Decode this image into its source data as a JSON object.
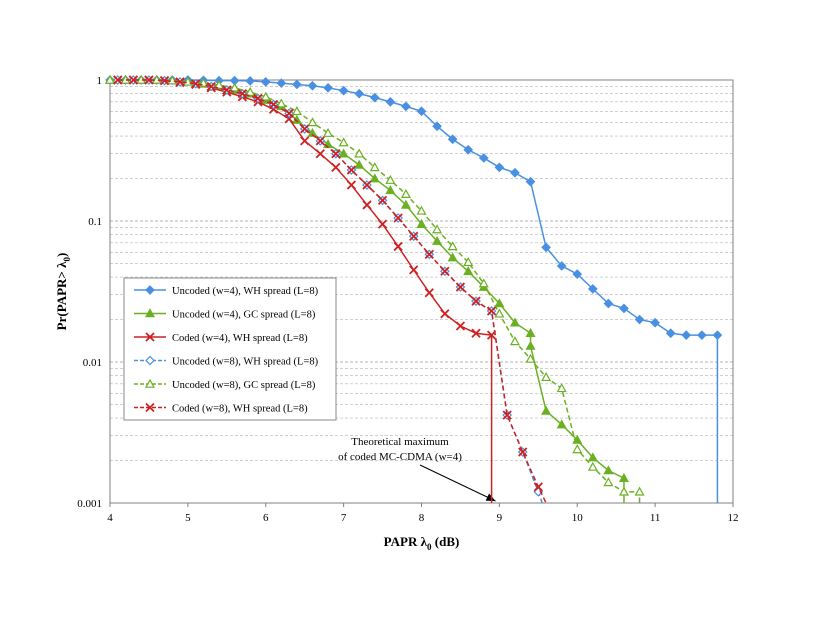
{
  "chart_data": {
    "type": "line",
    "title": "",
    "xlabel": "PAPR λ",
    "xlabel_sub": "0",
    "xlabel_unit": " (dB)",
    "ylabel": "Pr(PAPR> λ",
    "ylabel_sub": "0",
    "ylabel_end": ")",
    "xlim": [
      4,
      12
    ],
    "ylim": [
      0.001,
      1
    ],
    "yscale": "log",
    "x_ticks": [
      "4",
      "5",
      "6",
      "7",
      "8",
      "9",
      "10",
      "11",
      "12"
    ],
    "y_ticks": [
      "0.001",
      "0.01",
      "0.1",
      "1"
    ],
    "grid": true,
    "legend_position": "left-center",
    "annotation": {
      "lines": [
        "Theoretical maximum",
        "of coded MC-CDMA (w=4)"
      ],
      "points_to": {
        "x": 8.95,
        "y": 0.001
      }
    },
    "series": [
      {
        "name": "Uncoded  (w=4), WH spread (L=8)",
        "color": "#4a90e2",
        "marker": "diamond",
        "filled": true,
        "dashed": false,
        "points": [
          [
            4.0,
            1
          ],
          [
            4.2,
            1
          ],
          [
            4.4,
            1
          ],
          [
            4.6,
            1
          ],
          [
            4.8,
            1
          ],
          [
            5.0,
            1
          ],
          [
            5.2,
            0.995
          ],
          [
            5.4,
            0.99
          ],
          [
            5.6,
            0.99
          ],
          [
            5.8,
            0.985
          ],
          [
            6.0,
            0.97
          ],
          [
            6.2,
            0.95
          ],
          [
            6.4,
            0.93
          ],
          [
            6.6,
            0.91
          ],
          [
            6.8,
            0.88
          ],
          [
            7.0,
            0.84
          ],
          [
            7.2,
            0.8
          ],
          [
            7.4,
            0.75
          ],
          [
            7.6,
            0.7
          ],
          [
            7.8,
            0.65
          ],
          [
            8.0,
            0.6
          ],
          [
            8.2,
            0.47
          ],
          [
            8.4,
            0.38
          ],
          [
            8.6,
            0.32
          ],
          [
            8.8,
            0.28
          ],
          [
            9.0,
            0.24
          ],
          [
            9.2,
            0.22
          ],
          [
            9.4,
            0.19
          ],
          [
            9.6,
            0.065
          ],
          [
            9.8,
            0.048
          ],
          [
            10.0,
            0.042
          ],
          [
            10.2,
            0.033
          ],
          [
            10.4,
            0.026
          ],
          [
            10.6,
            0.024
          ],
          [
            10.8,
            0.02
          ],
          [
            11.0,
            0.019
          ],
          [
            11.2,
            0.016
          ],
          [
            11.4,
            0.0155
          ],
          [
            11.6,
            0.0155
          ],
          [
            11.8,
            0.0155
          ],
          [
            11.8,
            0.001
          ]
        ]
      },
      {
        "name": "Uncoded  (w=4), GC spread (L=8)",
        "color": "#6ab023",
        "marker": "triangle",
        "filled": true,
        "dashed": false,
        "points": [
          [
            4.0,
            1
          ],
          [
            4.2,
            1
          ],
          [
            4.4,
            1
          ],
          [
            4.6,
            1
          ],
          [
            4.8,
            0.99
          ],
          [
            5.0,
            0.97
          ],
          [
            5.2,
            0.94
          ],
          [
            5.4,
            0.9
          ],
          [
            5.6,
            0.85
          ],
          [
            5.8,
            0.8
          ],
          [
            6.0,
            0.72
          ],
          [
            6.2,
            0.65
          ],
          [
            6.4,
            0.52
          ],
          [
            6.6,
            0.42
          ],
          [
            6.8,
            0.35
          ],
          [
            7.0,
            0.3
          ],
          [
            7.2,
            0.25
          ],
          [
            7.4,
            0.2
          ],
          [
            7.6,
            0.165
          ],
          [
            7.8,
            0.13
          ],
          [
            8.0,
            0.095
          ],
          [
            8.2,
            0.072
          ],
          [
            8.4,
            0.055
          ],
          [
            8.6,
            0.044
          ],
          [
            8.8,
            0.034
          ],
          [
            9.0,
            0.026
          ],
          [
            9.2,
            0.019
          ],
          [
            9.4,
            0.016
          ],
          [
            9.4,
            0.013
          ],
          [
            9.6,
            0.0045
          ],
          [
            9.8,
            0.0036
          ],
          [
            10.0,
            0.0028
          ],
          [
            10.2,
            0.0021
          ],
          [
            10.4,
            0.0017
          ],
          [
            10.6,
            0.0015
          ],
          [
            10.6,
            0.001
          ]
        ]
      },
      {
        "name": "Coded  (w=4), WH spread (L=8)",
        "color": "#cc2222",
        "marker": "x",
        "filled": true,
        "dashed": false,
        "points": [
          [
            4.1,
            1
          ],
          [
            4.3,
            1
          ],
          [
            4.5,
            1
          ],
          [
            4.7,
            0.99
          ],
          [
            4.9,
            0.96
          ],
          [
            5.1,
            0.93
          ],
          [
            5.3,
            0.88
          ],
          [
            5.5,
            0.82
          ],
          [
            5.7,
            0.76
          ],
          [
            5.9,
            0.7
          ],
          [
            6.1,
            0.62
          ],
          [
            6.3,
            0.53
          ],
          [
            6.5,
            0.37
          ],
          [
            6.7,
            0.3
          ],
          [
            6.9,
            0.24
          ],
          [
            7.1,
            0.18
          ],
          [
            7.3,
            0.13
          ],
          [
            7.5,
            0.095
          ],
          [
            7.7,
            0.066
          ],
          [
            7.9,
            0.045
          ],
          [
            8.1,
            0.031
          ],
          [
            8.3,
            0.022
          ],
          [
            8.5,
            0.018
          ],
          [
            8.7,
            0.016
          ],
          [
            8.9,
            0.0155
          ],
          [
            8.9,
            0.001
          ]
        ]
      },
      {
        "name": "Uncoded  (w=8), WH spread (L=8)",
        "color": "#4a90e2",
        "marker": "diamond",
        "filled": false,
        "dashed": true,
        "points": [
          [
            4.1,
            1
          ],
          [
            4.3,
            1
          ],
          [
            4.5,
            1
          ],
          [
            4.7,
            0.99
          ],
          [
            4.9,
            0.97
          ],
          [
            5.1,
            0.94
          ],
          [
            5.3,
            0.9
          ],
          [
            5.5,
            0.85
          ],
          [
            5.7,
            0.8
          ],
          [
            5.9,
            0.74
          ],
          [
            6.1,
            0.67
          ],
          [
            6.3,
            0.58
          ],
          [
            6.5,
            0.45
          ],
          [
            6.7,
            0.37
          ],
          [
            6.9,
            0.3
          ],
          [
            7.1,
            0.23
          ],
          [
            7.3,
            0.18
          ],
          [
            7.5,
            0.14
          ],
          [
            7.7,
            0.105
          ],
          [
            7.9,
            0.078
          ],
          [
            8.1,
            0.058
          ],
          [
            8.3,
            0.044
          ],
          [
            8.5,
            0.034
          ],
          [
            8.7,
            0.027
          ],
          [
            8.9,
            0.023
          ],
          [
            9.1,
            0.0042
          ],
          [
            9.3,
            0.0023
          ],
          [
            9.5,
            0.0012
          ],
          [
            9.55,
            0.001
          ]
        ]
      },
      {
        "name": "Uncoded  (w=8), GC spread (L=8)",
        "color": "#6ab023",
        "marker": "triangle",
        "filled": false,
        "dashed": true,
        "points": [
          [
            4.0,
            1
          ],
          [
            4.2,
            1
          ],
          [
            4.4,
            1
          ],
          [
            4.6,
            1
          ],
          [
            4.8,
            0.99
          ],
          [
            5.0,
            0.97
          ],
          [
            5.2,
            0.95
          ],
          [
            5.4,
            0.92
          ],
          [
            5.6,
            0.88
          ],
          [
            5.8,
            0.82
          ],
          [
            6.0,
            0.76
          ],
          [
            6.2,
            0.68
          ],
          [
            6.4,
            0.6
          ],
          [
            6.6,
            0.5
          ],
          [
            6.8,
            0.42
          ],
          [
            7.0,
            0.36
          ],
          [
            7.2,
            0.3
          ],
          [
            7.4,
            0.24
          ],
          [
            7.6,
            0.195
          ],
          [
            7.8,
            0.155
          ],
          [
            8.0,
            0.118
          ],
          [
            8.2,
            0.087
          ],
          [
            8.4,
            0.066
          ],
          [
            8.6,
            0.051
          ],
          [
            8.8,
            0.036
          ],
          [
            9.0,
            0.022
          ],
          [
            9.2,
            0.014
          ],
          [
            9.4,
            0.0105
          ],
          [
            9.6,
            0.0078
          ],
          [
            9.8,
            0.0065
          ],
          [
            10.0,
            0.0024
          ],
          [
            10.2,
            0.0018
          ],
          [
            10.4,
            0.0014
          ],
          [
            10.6,
            0.0012
          ],
          [
            10.8,
            0.0012
          ],
          [
            10.8,
            0.001
          ]
        ]
      },
      {
        "name": "Coded  (w=8), WH spread (L=8)",
        "color": "#cc2222",
        "marker": "x",
        "filled": true,
        "dashed": true,
        "points": [
          [
            4.1,
            1
          ],
          [
            4.3,
            1
          ],
          [
            4.5,
            1
          ],
          [
            4.7,
            0.99
          ],
          [
            4.9,
            0.97
          ],
          [
            5.1,
            0.94
          ],
          [
            5.3,
            0.9
          ],
          [
            5.5,
            0.85
          ],
          [
            5.7,
            0.8
          ],
          [
            5.9,
            0.74
          ],
          [
            6.1,
            0.67
          ],
          [
            6.3,
            0.58
          ],
          [
            6.5,
            0.45
          ],
          [
            6.7,
            0.37
          ],
          [
            6.9,
            0.3
          ],
          [
            7.1,
            0.23
          ],
          [
            7.3,
            0.18
          ],
          [
            7.5,
            0.14
          ],
          [
            7.7,
            0.105
          ],
          [
            7.9,
            0.078
          ],
          [
            8.1,
            0.058
          ],
          [
            8.3,
            0.044
          ],
          [
            8.5,
            0.034
          ],
          [
            8.7,
            0.027
          ],
          [
            8.9,
            0.023
          ],
          [
            9.1,
            0.0042
          ],
          [
            9.3,
            0.0023
          ],
          [
            9.5,
            0.0013
          ],
          [
            9.6,
            0.001
          ]
        ]
      }
    ]
  }
}
